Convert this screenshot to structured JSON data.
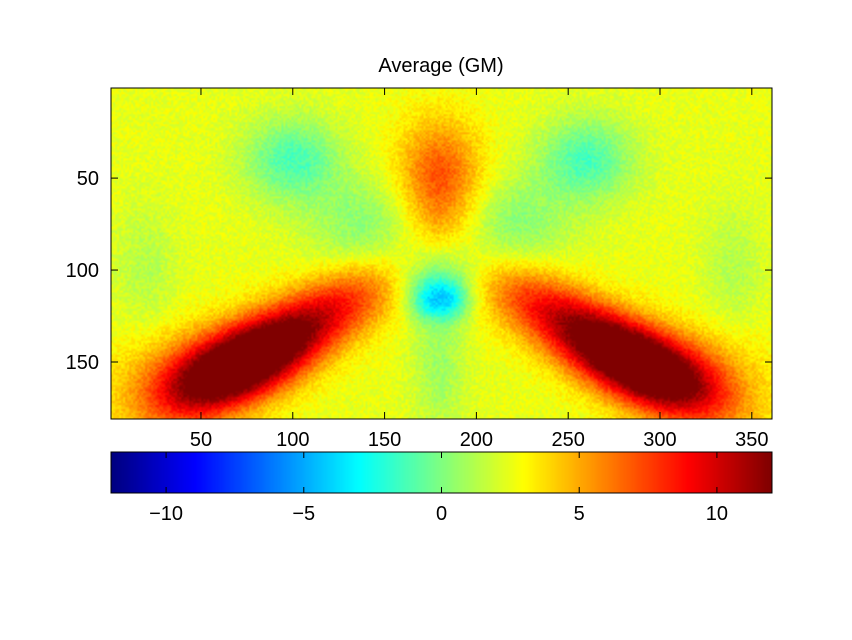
{
  "chart_data": {
    "type": "heatmap",
    "title": "Average (GM)",
    "xlabel": "",
    "ylabel": "",
    "xlim": [
      1,
      361
    ],
    "ylim": [
      181,
      1
    ],
    "y_direction": "reversed",
    "x_ticks": [
      "50",
      "100",
      "150",
      "200",
      "250",
      "300",
      "350"
    ],
    "x_tick_values": [
      50,
      100,
      150,
      200,
      250,
      300,
      350
    ],
    "y_ticks": [
      "50",
      "100",
      "150"
    ],
    "y_tick_values": [
      50,
      100,
      150
    ],
    "grid": false,
    "colormap": "jet",
    "colorbar": {
      "orientation": "horizontal",
      "placement": "below",
      "range": [
        -12,
        12
      ],
      "tick_values": [
        -10,
        -5,
        0,
        5,
        10
      ],
      "tick_labels": [
        "−10",
        "−5",
        "0",
        "5",
        "10"
      ]
    },
    "approximate_field": {
      "description_of_values": "estimated from colours; field is mirror-symmetric about x = 180",
      "background": 2.5,
      "features": [
        {
          "x": 70,
          "y": 152,
          "value": 11.5,
          "sx": 30,
          "sy": 14,
          "angle": -25
        },
        {
          "x": 110,
          "y": 128,
          "value": 7,
          "sx": 45,
          "sy": 13,
          "angle": -30
        },
        {
          "x": 180,
          "y": 50,
          "value": 5.5,
          "sx": 16,
          "sy": 22,
          "angle": 0
        },
        {
          "x": 178,
          "y": 116,
          "value": -4.5,
          "sx": 10,
          "sy": 8,
          "angle": 0
        },
        {
          "x": 100,
          "y": 40,
          "value": -3,
          "sx": 18,
          "sy": 16,
          "angle": 0
        },
        {
          "x": 140,
          "y": 75,
          "value": -1.5,
          "sx": 22,
          "sy": 18,
          "angle": 0
        },
        {
          "x": 175,
          "y": 100,
          "value": -2,
          "sx": 22,
          "sy": 12,
          "angle": 0
        },
        {
          "x": 20,
          "y": 100,
          "value": -0.5,
          "sx": 12,
          "sy": 25,
          "angle": 0
        },
        {
          "x": 180,
          "y": 150,
          "value": -1,
          "sx": 10,
          "sy": 30,
          "angle": 0
        },
        {
          "x": 35,
          "y": 160,
          "value": 3,
          "sx": 25,
          "sy": 20,
          "angle": 0
        }
      ]
    }
  }
}
